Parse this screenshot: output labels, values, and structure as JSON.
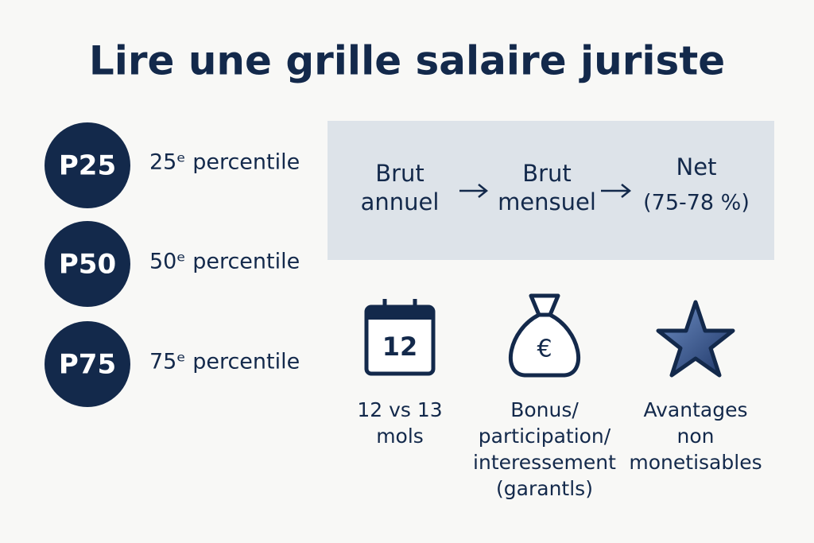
{
  "title": "Lire une grille salaire juriste",
  "percentiles": [
    {
      "badge": "P25",
      "label": "25ᵉ percentile"
    },
    {
      "badge": "P50",
      "label": "50ᵉ percentile"
    },
    {
      "badge": "P75",
      "label": "75ᵉ percentile"
    }
  ],
  "flow": [
    {
      "lines": [
        "Brut",
        "annuel"
      ]
    },
    {
      "lines": [
        "Brut",
        "mensuel"
      ]
    },
    {
      "lines": [
        "Net",
        "(75-78 %)"
      ]
    }
  ],
  "icons": [
    {
      "icon_text": "12",
      "lines": [
        "12 vs 13",
        "mols"
      ]
    },
    {
      "icon_text": "€",
      "lines": [
        "Bonus/",
        "participation/",
        "interessement",
        "(garantls)"
      ]
    },
    {
      "lines": [
        "Avantages",
        "non",
        "monetisables"
      ]
    }
  ]
}
